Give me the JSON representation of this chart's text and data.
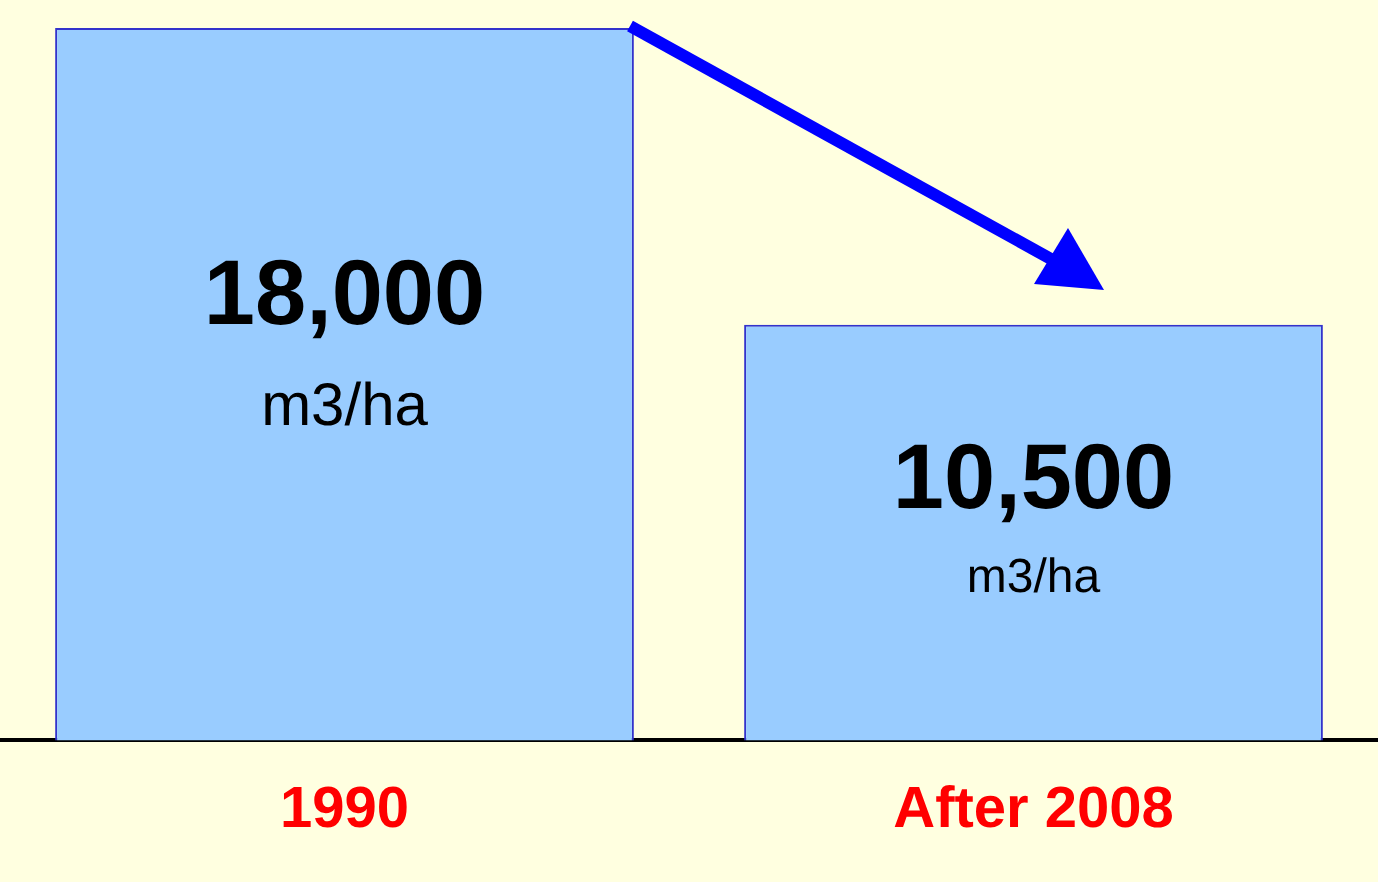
{
  "chart_data": {
    "type": "bar",
    "categories": [
      "1990",
      "After 2008"
    ],
    "values": [
      18000,
      10500
    ],
    "color": "#99ccff",
    "value_labels": [
      "18,000",
      "10,500"
    ],
    "annotations": [
      "m3/ha",
      "m3/ha"
    ],
    "tick_labels": "x",
    "legend": false
  }
}
